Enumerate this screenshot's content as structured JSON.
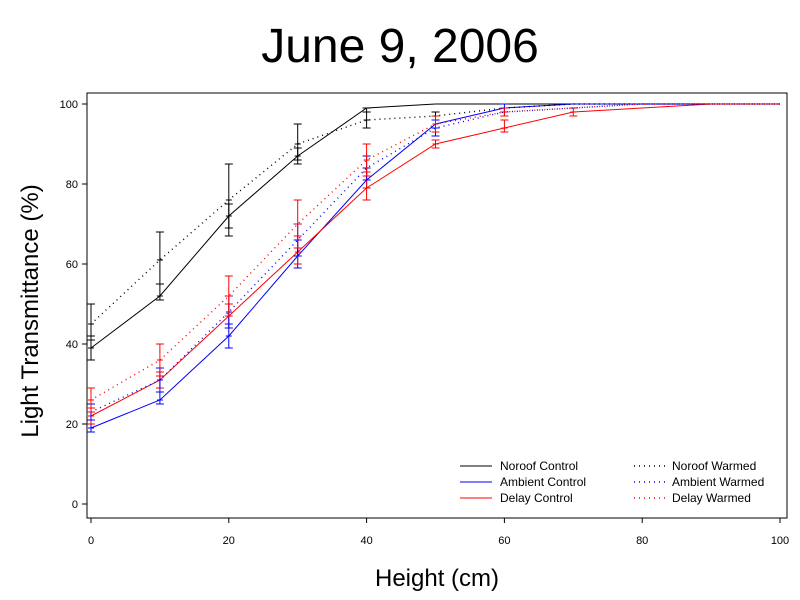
{
  "chart_data": {
    "type": "line",
    "title": "June 9, 2006",
    "xlabel": "Height (cm)",
    "ylabel": "Light Transmittance (%)",
    "xlim": [
      0,
      100
    ],
    "ylim": [
      0,
      100
    ],
    "xticks": [
      0,
      20,
      40,
      60,
      80,
      100
    ],
    "yticks": [
      0,
      20,
      40,
      60,
      80,
      100
    ],
    "grid": false,
    "legend_position": "bottom-right",
    "series": [
      {
        "name": "Noroof Control",
        "color": "#000000",
        "style": "solid",
        "points": [
          {
            "x": 0,
            "y": 39,
            "err_low": 36,
            "err_high": 42
          },
          {
            "x": 10,
            "y": 52,
            "err_low": 51,
            "err_high": 55
          },
          {
            "x": 20,
            "y": 72,
            "err_low": 69,
            "err_high": 75
          },
          {
            "x": 30,
            "y": 87,
            "err_low": 85,
            "err_high": 89
          },
          {
            "x": 40,
            "y": 99,
            "err_low": 98,
            "err_high": 99
          },
          {
            "x": 50,
            "y": 100
          },
          {
            "x": 60,
            "y": 100
          },
          {
            "x": 70,
            "y": 100
          },
          {
            "x": 80,
            "y": 100
          },
          {
            "x": 90,
            "y": 100
          },
          {
            "x": 100,
            "y": 100
          }
        ]
      },
      {
        "name": "Ambient Control",
        "color": "#0000ff",
        "style": "solid",
        "points": [
          {
            "x": 0,
            "y": 19,
            "err_low": 18,
            "err_high": 20
          },
          {
            "x": 10,
            "y": 26,
            "err_low": 25,
            "err_high": 28
          },
          {
            "x": 20,
            "y": 42,
            "err_low": 39,
            "err_high": 45
          },
          {
            "x": 30,
            "y": 62,
            "err_low": 59,
            "err_high": 66
          },
          {
            "x": 40,
            "y": 81,
            "err_low": 79,
            "err_high": 84
          },
          {
            "x": 50,
            "y": 95,
            "err_low": 94,
            "err_high": 96
          },
          {
            "x": 60,
            "y": 99,
            "err_low": 98,
            "err_high": 100
          },
          {
            "x": 70,
            "y": 100
          },
          {
            "x": 80,
            "y": 100
          },
          {
            "x": 90,
            "y": 100
          },
          {
            "x": 100,
            "y": 100
          }
        ]
      },
      {
        "name": "Delay Control",
        "color": "#ff0000",
        "style": "solid",
        "points": [
          {
            "x": 0,
            "y": 22,
            "err_low": 20,
            "err_high": 24
          },
          {
            "x": 10,
            "y": 31,
            "err_low": 29,
            "err_high": 33
          },
          {
            "x": 20,
            "y": 47,
            "err_low": 44,
            "err_high": 50
          },
          {
            "x": 30,
            "y": 63,
            "err_low": 60,
            "err_high": 67
          },
          {
            "x": 40,
            "y": 79,
            "err_low": 76,
            "err_high": 83
          },
          {
            "x": 50,
            "y": 90,
            "err_low": 89,
            "err_high": 91
          },
          {
            "x": 60,
            "y": 94,
            "err_low": 93,
            "err_high": 96
          },
          {
            "x": 70,
            "y": 98,
            "err_low": 97,
            "err_high": 99
          },
          {
            "x": 80,
            "y": 99
          },
          {
            "x": 90,
            "y": 100
          },
          {
            "x": 100,
            "y": 100
          }
        ]
      },
      {
        "name": "Noroof Warmed",
        "color": "#000000",
        "style": "dotted",
        "points": [
          {
            "x": 0,
            "y": 45,
            "err_low": 41,
            "err_high": 50
          },
          {
            "x": 10,
            "y": 61,
            "err_low": 55,
            "err_high": 68
          },
          {
            "x": 20,
            "y": 76,
            "err_low": 67,
            "err_high": 85
          },
          {
            "x": 30,
            "y": 90,
            "err_low": 86,
            "err_high": 95
          },
          {
            "x": 40,
            "y": 96,
            "err_low": 94,
            "err_high": 98
          },
          {
            "x": 50,
            "y": 97,
            "err_low": 96,
            "err_high": 98
          },
          {
            "x": 60,
            "y": 99
          },
          {
            "x": 70,
            "y": 100
          },
          {
            "x": 80,
            "y": 100
          },
          {
            "x": 90,
            "y": 100
          },
          {
            "x": 100,
            "y": 100
          }
        ]
      },
      {
        "name": "Ambient Warmed",
        "color": "#0000ff",
        "style": "dotted",
        "points": [
          {
            "x": 0,
            "y": 23,
            "err_low": 21,
            "err_high": 25
          },
          {
            "x": 10,
            "y": 31,
            "err_low": 28,
            "err_high": 34
          },
          {
            "x": 20,
            "y": 48,
            "err_low": 44,
            "err_high": 52
          },
          {
            "x": 30,
            "y": 66,
            "err_low": 62,
            "err_high": 70
          },
          {
            "x": 40,
            "y": 84,
            "err_low": 81,
            "err_high": 87
          },
          {
            "x": 50,
            "y": 94,
            "err_low": 92,
            "err_high": 96
          },
          {
            "x": 60,
            "y": 98,
            "err_low": 97,
            "err_high": 99
          },
          {
            "x": 70,
            "y": 99
          },
          {
            "x": 80,
            "y": 100
          },
          {
            "x": 90,
            "y": 100
          },
          {
            "x": 100,
            "y": 100
          }
        ]
      },
      {
        "name": "Delay Warmed",
        "color": "#ff0000",
        "style": "dotted",
        "points": [
          {
            "x": 0,
            "y": 26,
            "err_low": 23,
            "err_high": 29
          },
          {
            "x": 10,
            "y": 36,
            "err_low": 32,
            "err_high": 40
          },
          {
            "x": 20,
            "y": 52,
            "err_low": 47,
            "err_high": 57
          },
          {
            "x": 30,
            "y": 70,
            "err_low": 64,
            "err_high": 76
          },
          {
            "x": 40,
            "y": 86,
            "err_low": 82,
            "err_high": 90
          },
          {
            "x": 50,
            "y": 95,
            "err_low": 93,
            "err_high": 97
          },
          {
            "x": 60,
            "y": 98,
            "err_low": 97,
            "err_high": 99
          },
          {
            "x": 70,
            "y": 99
          },
          {
            "x": 80,
            "y": 100
          },
          {
            "x": 90,
            "y": 100
          },
          {
            "x": 100,
            "y": 100
          }
        ]
      }
    ]
  }
}
